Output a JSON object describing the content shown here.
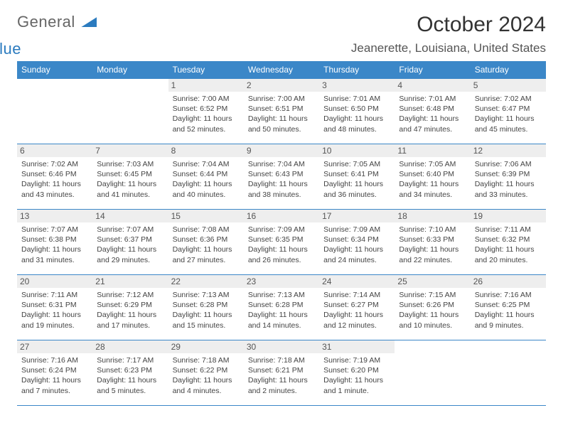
{
  "logo": {
    "part1": "General",
    "part2": "Blue"
  },
  "title": "October 2024",
  "location": "Jeanerette, Louisiana, United States",
  "header_bg": "#3b87c8",
  "header_fg": "#ffffff",
  "daynum_bg": "#eeeeee",
  "divider_color": "#3b87c8",
  "weekdays": [
    "Sunday",
    "Monday",
    "Tuesday",
    "Wednesday",
    "Thursday",
    "Friday",
    "Saturday"
  ],
  "weeks": [
    [
      {
        "n": "",
        "empty": true,
        "sr": "",
        "ss": "",
        "dl1": "",
        "dl2": ""
      },
      {
        "n": "",
        "empty": true,
        "sr": "",
        "ss": "",
        "dl1": "",
        "dl2": ""
      },
      {
        "n": "1",
        "sr": "Sunrise: 7:00 AM",
        "ss": "Sunset: 6:52 PM",
        "dl1": "Daylight: 11 hours",
        "dl2": "and 52 minutes."
      },
      {
        "n": "2",
        "sr": "Sunrise: 7:00 AM",
        "ss": "Sunset: 6:51 PM",
        "dl1": "Daylight: 11 hours",
        "dl2": "and 50 minutes."
      },
      {
        "n": "3",
        "sr": "Sunrise: 7:01 AM",
        "ss": "Sunset: 6:50 PM",
        "dl1": "Daylight: 11 hours",
        "dl2": "and 48 minutes."
      },
      {
        "n": "4",
        "sr": "Sunrise: 7:01 AM",
        "ss": "Sunset: 6:48 PM",
        "dl1": "Daylight: 11 hours",
        "dl2": "and 47 minutes."
      },
      {
        "n": "5",
        "sr": "Sunrise: 7:02 AM",
        "ss": "Sunset: 6:47 PM",
        "dl1": "Daylight: 11 hours",
        "dl2": "and 45 minutes."
      }
    ],
    [
      {
        "n": "6",
        "sr": "Sunrise: 7:02 AM",
        "ss": "Sunset: 6:46 PM",
        "dl1": "Daylight: 11 hours",
        "dl2": "and 43 minutes."
      },
      {
        "n": "7",
        "sr": "Sunrise: 7:03 AM",
        "ss": "Sunset: 6:45 PM",
        "dl1": "Daylight: 11 hours",
        "dl2": "and 41 minutes."
      },
      {
        "n": "8",
        "sr": "Sunrise: 7:04 AM",
        "ss": "Sunset: 6:44 PM",
        "dl1": "Daylight: 11 hours",
        "dl2": "and 40 minutes."
      },
      {
        "n": "9",
        "sr": "Sunrise: 7:04 AM",
        "ss": "Sunset: 6:43 PM",
        "dl1": "Daylight: 11 hours",
        "dl2": "and 38 minutes."
      },
      {
        "n": "10",
        "sr": "Sunrise: 7:05 AM",
        "ss": "Sunset: 6:41 PM",
        "dl1": "Daylight: 11 hours",
        "dl2": "and 36 minutes."
      },
      {
        "n": "11",
        "sr": "Sunrise: 7:05 AM",
        "ss": "Sunset: 6:40 PM",
        "dl1": "Daylight: 11 hours",
        "dl2": "and 34 minutes."
      },
      {
        "n": "12",
        "sr": "Sunrise: 7:06 AM",
        "ss": "Sunset: 6:39 PM",
        "dl1": "Daylight: 11 hours",
        "dl2": "and 33 minutes."
      }
    ],
    [
      {
        "n": "13",
        "sr": "Sunrise: 7:07 AM",
        "ss": "Sunset: 6:38 PM",
        "dl1": "Daylight: 11 hours",
        "dl2": "and 31 minutes."
      },
      {
        "n": "14",
        "sr": "Sunrise: 7:07 AM",
        "ss": "Sunset: 6:37 PM",
        "dl1": "Daylight: 11 hours",
        "dl2": "and 29 minutes."
      },
      {
        "n": "15",
        "sr": "Sunrise: 7:08 AM",
        "ss": "Sunset: 6:36 PM",
        "dl1": "Daylight: 11 hours",
        "dl2": "and 27 minutes."
      },
      {
        "n": "16",
        "sr": "Sunrise: 7:09 AM",
        "ss": "Sunset: 6:35 PM",
        "dl1": "Daylight: 11 hours",
        "dl2": "and 26 minutes."
      },
      {
        "n": "17",
        "sr": "Sunrise: 7:09 AM",
        "ss": "Sunset: 6:34 PM",
        "dl1": "Daylight: 11 hours",
        "dl2": "and 24 minutes."
      },
      {
        "n": "18",
        "sr": "Sunrise: 7:10 AM",
        "ss": "Sunset: 6:33 PM",
        "dl1": "Daylight: 11 hours",
        "dl2": "and 22 minutes."
      },
      {
        "n": "19",
        "sr": "Sunrise: 7:11 AM",
        "ss": "Sunset: 6:32 PM",
        "dl1": "Daylight: 11 hours",
        "dl2": "and 20 minutes."
      }
    ],
    [
      {
        "n": "20",
        "sr": "Sunrise: 7:11 AM",
        "ss": "Sunset: 6:31 PM",
        "dl1": "Daylight: 11 hours",
        "dl2": "and 19 minutes."
      },
      {
        "n": "21",
        "sr": "Sunrise: 7:12 AM",
        "ss": "Sunset: 6:29 PM",
        "dl1": "Daylight: 11 hours",
        "dl2": "and 17 minutes."
      },
      {
        "n": "22",
        "sr": "Sunrise: 7:13 AM",
        "ss": "Sunset: 6:28 PM",
        "dl1": "Daylight: 11 hours",
        "dl2": "and 15 minutes."
      },
      {
        "n": "23",
        "sr": "Sunrise: 7:13 AM",
        "ss": "Sunset: 6:28 PM",
        "dl1": "Daylight: 11 hours",
        "dl2": "and 14 minutes."
      },
      {
        "n": "24",
        "sr": "Sunrise: 7:14 AM",
        "ss": "Sunset: 6:27 PM",
        "dl1": "Daylight: 11 hours",
        "dl2": "and 12 minutes."
      },
      {
        "n": "25",
        "sr": "Sunrise: 7:15 AM",
        "ss": "Sunset: 6:26 PM",
        "dl1": "Daylight: 11 hours",
        "dl2": "and 10 minutes."
      },
      {
        "n": "26",
        "sr": "Sunrise: 7:16 AM",
        "ss": "Sunset: 6:25 PM",
        "dl1": "Daylight: 11 hours",
        "dl2": "and 9 minutes."
      }
    ],
    [
      {
        "n": "27",
        "sr": "Sunrise: 7:16 AM",
        "ss": "Sunset: 6:24 PM",
        "dl1": "Daylight: 11 hours",
        "dl2": "and 7 minutes."
      },
      {
        "n": "28",
        "sr": "Sunrise: 7:17 AM",
        "ss": "Sunset: 6:23 PM",
        "dl1": "Daylight: 11 hours",
        "dl2": "and 5 minutes."
      },
      {
        "n": "29",
        "sr": "Sunrise: 7:18 AM",
        "ss": "Sunset: 6:22 PM",
        "dl1": "Daylight: 11 hours",
        "dl2": "and 4 minutes."
      },
      {
        "n": "30",
        "sr": "Sunrise: 7:18 AM",
        "ss": "Sunset: 6:21 PM",
        "dl1": "Daylight: 11 hours",
        "dl2": "and 2 minutes."
      },
      {
        "n": "31",
        "sr": "Sunrise: 7:19 AM",
        "ss": "Sunset: 6:20 PM",
        "dl1": "Daylight: 11 hours",
        "dl2": "and 1 minute."
      },
      {
        "n": "",
        "empty": true,
        "sr": "",
        "ss": "",
        "dl1": "",
        "dl2": ""
      },
      {
        "n": "",
        "empty": true,
        "sr": "",
        "ss": "",
        "dl1": "",
        "dl2": ""
      }
    ]
  ]
}
